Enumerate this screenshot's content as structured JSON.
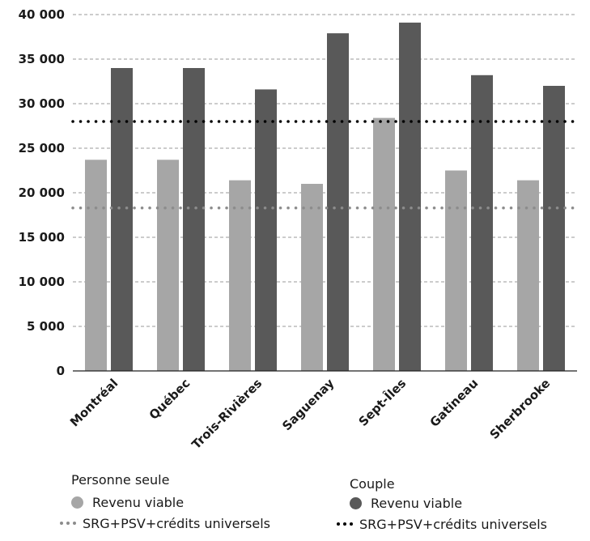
{
  "chart_data": {
    "type": "bar",
    "categories": [
      "Montréal",
      "Québec",
      "Trois-Rivières",
      "Saguenay",
      "Sept-Îles",
      "Gatineau",
      "Sherbrooke"
    ],
    "series": [
      {
        "name": "Revenu viable",
        "group": "Personne seule",
        "color": "#a6a6a6",
        "values": [
          23700,
          23700,
          21400,
          21000,
          28400,
          22500,
          21400
        ]
      },
      {
        "name": "Revenu viable",
        "group": "Couple",
        "color": "#595959",
        "values": [
          34000,
          34000,
          31600,
          37900,
          39100,
          33200,
          32000
        ]
      }
    ],
    "reference_lines": [
      {
        "name": "SRG+PSV+crédits universels",
        "group": "Personne seule",
        "value": 18300,
        "color": "#8c8c8c",
        "style": "dotted"
      },
      {
        "name": "SRG+PSV+crédits universels",
        "group": "Couple",
        "value": 28000,
        "color": "#000000",
        "style": "dotted"
      }
    ],
    "ylim": [
      0,
      40000
    ],
    "yticks": [
      0,
      5000,
      10000,
      15000,
      20000,
      25000,
      30000,
      35000,
      40000
    ],
    "ytick_labels": [
      "0",
      "5 000",
      "10 000",
      "15 000",
      "20 000",
      "25 000",
      "30 000",
      "35 000",
      "40 000"
    ],
    "grid": true,
    "grid_style": "dashed",
    "legend_position": "bottom",
    "title": "",
    "xlabel": "",
    "ylabel": ""
  },
  "legend": {
    "groups": [
      {
        "title": "Personne seule",
        "bar_label": "Revenu viable",
        "line_label": "SRG+PSV+crédits universels"
      },
      {
        "title": "Couple",
        "bar_label": "Revenu viable",
        "line_label": "SRG+PSV+crédits universels"
      }
    ]
  }
}
